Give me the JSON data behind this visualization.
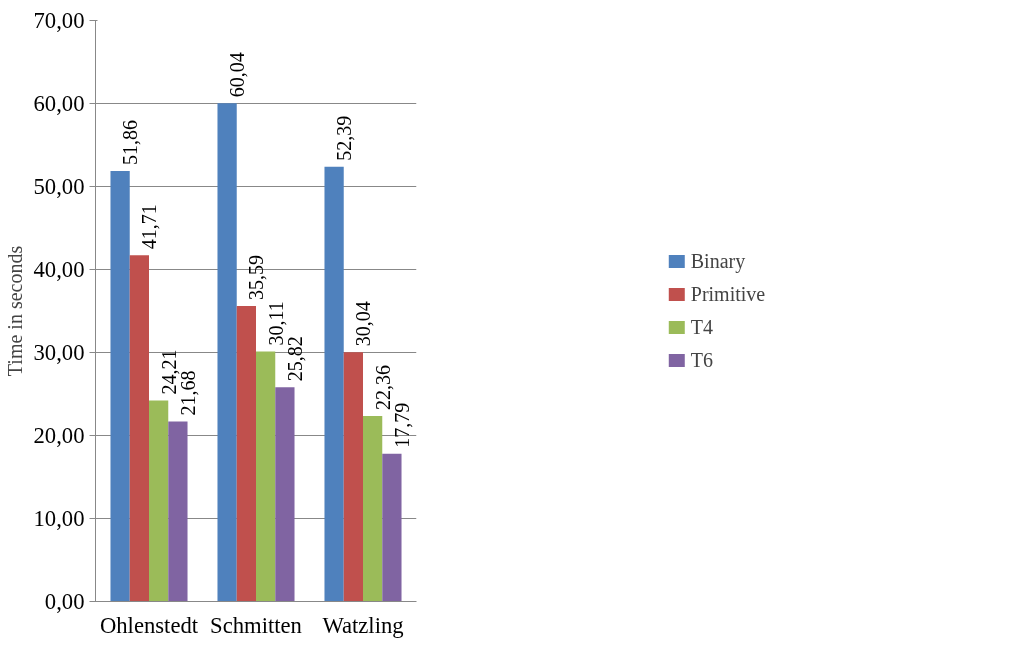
{
  "chart_data": {
    "type": "bar",
    "ylabel": "Time in seconds",
    "categories": [
      "Ohlenstedt",
      "Schmitten",
      "Watzling"
    ],
    "series": [
      {
        "name": "Binary",
        "color": "#4f81bd",
        "values": [
          51.86,
          60.04,
          52.39
        ],
        "value_labels": [
          "51,86",
          "60,04",
          "52,39"
        ]
      },
      {
        "name": "Primitive",
        "color": "#c0504d",
        "values": [
          41.71,
          35.59,
          30.04
        ],
        "value_labels": [
          "41,71",
          "35,59",
          "30,04"
        ]
      },
      {
        "name": "T4",
        "color": "#9bbb59",
        "values": [
          24.21,
          30.11,
          22.36
        ],
        "value_labels": [
          "24,21",
          "30,11",
          "22,36"
        ]
      },
      {
        "name": "T6",
        "color": "#8064a2",
        "values": [
          21.68,
          25.82,
          17.79
        ],
        "value_labels": [
          "21,68",
          "25,82",
          "17,79"
        ]
      }
    ],
    "ylim": [
      0,
      70
    ],
    "yticks": [
      {
        "value": 0,
        "label": "0,00"
      },
      {
        "value": 10,
        "label": "10,00"
      },
      {
        "value": 20,
        "label": "20,00"
      },
      {
        "value": 30,
        "label": "30,00"
      },
      {
        "value": 40,
        "label": "40,00"
      },
      {
        "value": 50,
        "label": "50,00"
      },
      {
        "value": 60,
        "label": "60,00"
      },
      {
        "value": 70,
        "label": "70,00"
      }
    ],
    "grid": "y",
    "legend": "right"
  }
}
